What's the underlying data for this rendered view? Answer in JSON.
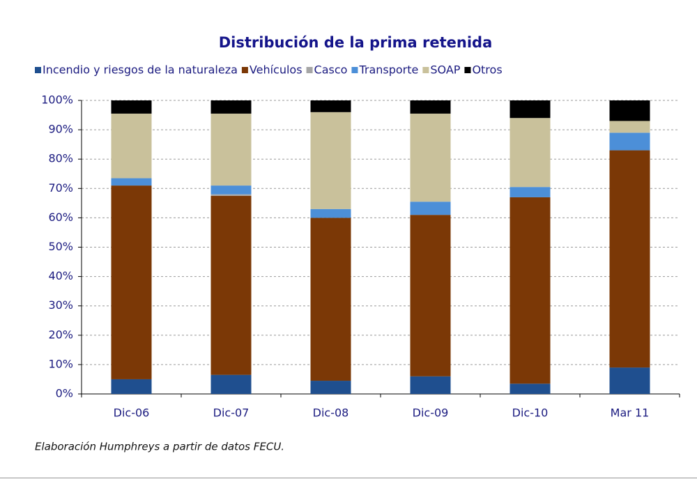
{
  "chart_data": {
    "type": "stacked_bar",
    "title": "Distribución de la prima retenida",
    "categories": [
      "Dic-06",
      "Dic-07",
      "Dic-08",
      "Dic-09",
      "Dic-10",
      "Mar 11"
    ],
    "series": [
      {
        "name": "Incendio y riesgos de la naturaleza",
        "color": "#1f4f8f",
        "values": [
          5,
          6.5,
          4.5,
          6,
          3.5,
          9
        ]
      },
      {
        "name": "Vehículos",
        "color": "#7b3806",
        "values": [
          66,
          61,
          55.5,
          55,
          63.5,
          74
        ]
      },
      {
        "name": "Casco",
        "color": "#a6a6a6",
        "values": [
          0,
          0.5,
          0,
          0,
          0,
          0
        ]
      },
      {
        "name": "Transporte",
        "color": "#4c8fd8",
        "values": [
          2.5,
          3,
          3,
          4.5,
          3.5,
          6
        ]
      },
      {
        "name": "SOAP",
        "color": "#c9c19b",
        "values": [
          22,
          24.5,
          33,
          30,
          23.5,
          4
        ]
      },
      {
        "name": "Otros",
        "color": "#000000",
        "values": [
          4.5,
          4.5,
          4,
          4.5,
          6,
          7
        ]
      }
    ],
    "ylim": [
      0,
      100
    ],
    "yticks": [
      {
        "value": 0,
        "label": "0%"
      },
      {
        "value": 10,
        "label": "10%"
      },
      {
        "value": 20,
        "label": "20%"
      },
      {
        "value": 30,
        "label": "30%"
      },
      {
        "value": 40,
        "label": "40%"
      },
      {
        "value": 50,
        "label": "50%"
      },
      {
        "value": 60,
        "label": "60%"
      },
      {
        "value": 70,
        "label": "70%"
      },
      {
        "value": 80,
        "label": "80%"
      },
      {
        "value": 90,
        "label": "90%"
      },
      {
        "value": 100,
        "label": "100%"
      }
    ],
    "grid": true
  },
  "note": "Elaboración Humphreys a partir de datos FECU."
}
